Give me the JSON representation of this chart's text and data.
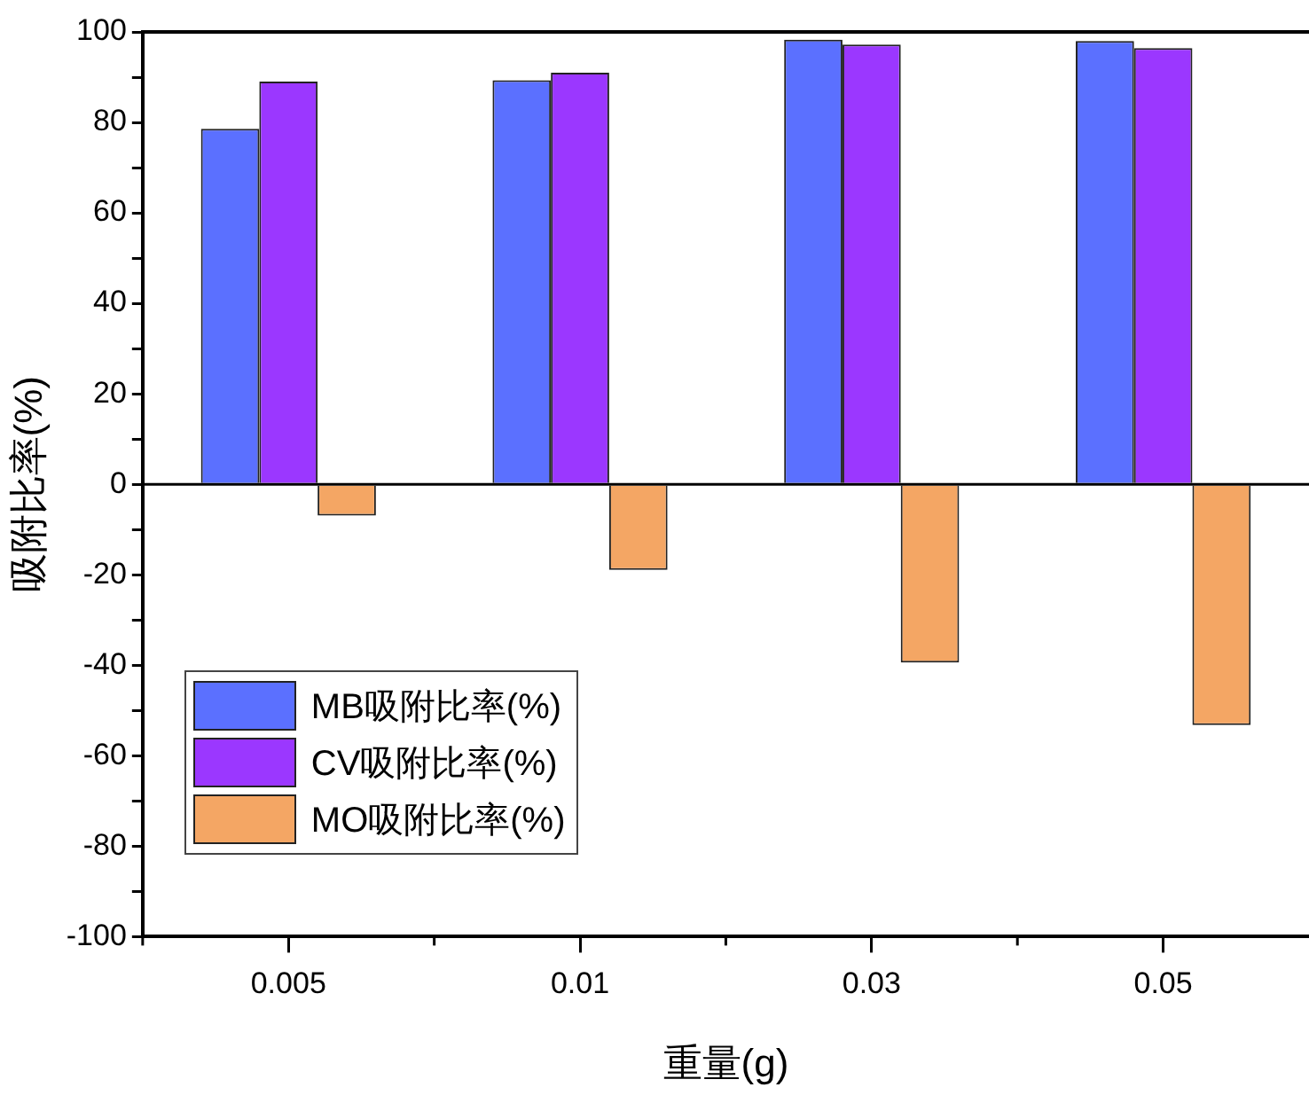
{
  "chart_data": {
    "type": "bar",
    "xlabel": "重量(g)",
    "ylabel": "吸附比率(%)",
    "categories": [
      "0.005",
      "0.01",
      "0.03",
      "0.05"
    ],
    "series": [
      {
        "name": "MB吸附比率(%)",
        "color": "#5b70ff",
        "values": [
          78.6,
          89.3,
          98.3,
          98.0
        ]
      },
      {
        "name": "CV吸附比率(%)",
        "color": "#9b37ff",
        "values": [
          89.0,
          91.0,
          97.2,
          96.4
        ]
      },
      {
        "name": "MO吸附比率(%)",
        "color": "#f4a664",
        "values": [
          -6.9,
          -18.9,
          -39.4,
          -53.2
        ]
      }
    ],
    "ylim": [
      -100,
      100
    ],
    "yticks": [
      -100,
      {
        "value": -90,
        "label": null
      },
      -80,
      {
        "value": -70,
        "label": null
      },
      -60,
      {
        "value": -50,
        "label": null
      },
      -40,
      {
        "value": -30,
        "label": null
      },
      -20,
      {
        "value": -10,
        "label": null
      },
      0,
      {
        "value": 10,
        "label": null
      },
      20,
      {
        "value": 30,
        "label": null
      },
      40,
      {
        "value": 50,
        "label": null
      },
      60,
      {
        "value": 70,
        "label": null
      },
      80,
      {
        "value": 90,
        "label": null
      },
      100
    ],
    "ref_lines": [
      {
        "axis": "y",
        "value": 0,
        "color": "#000000"
      }
    ],
    "grid": false,
    "legend": "bottom left"
  }
}
